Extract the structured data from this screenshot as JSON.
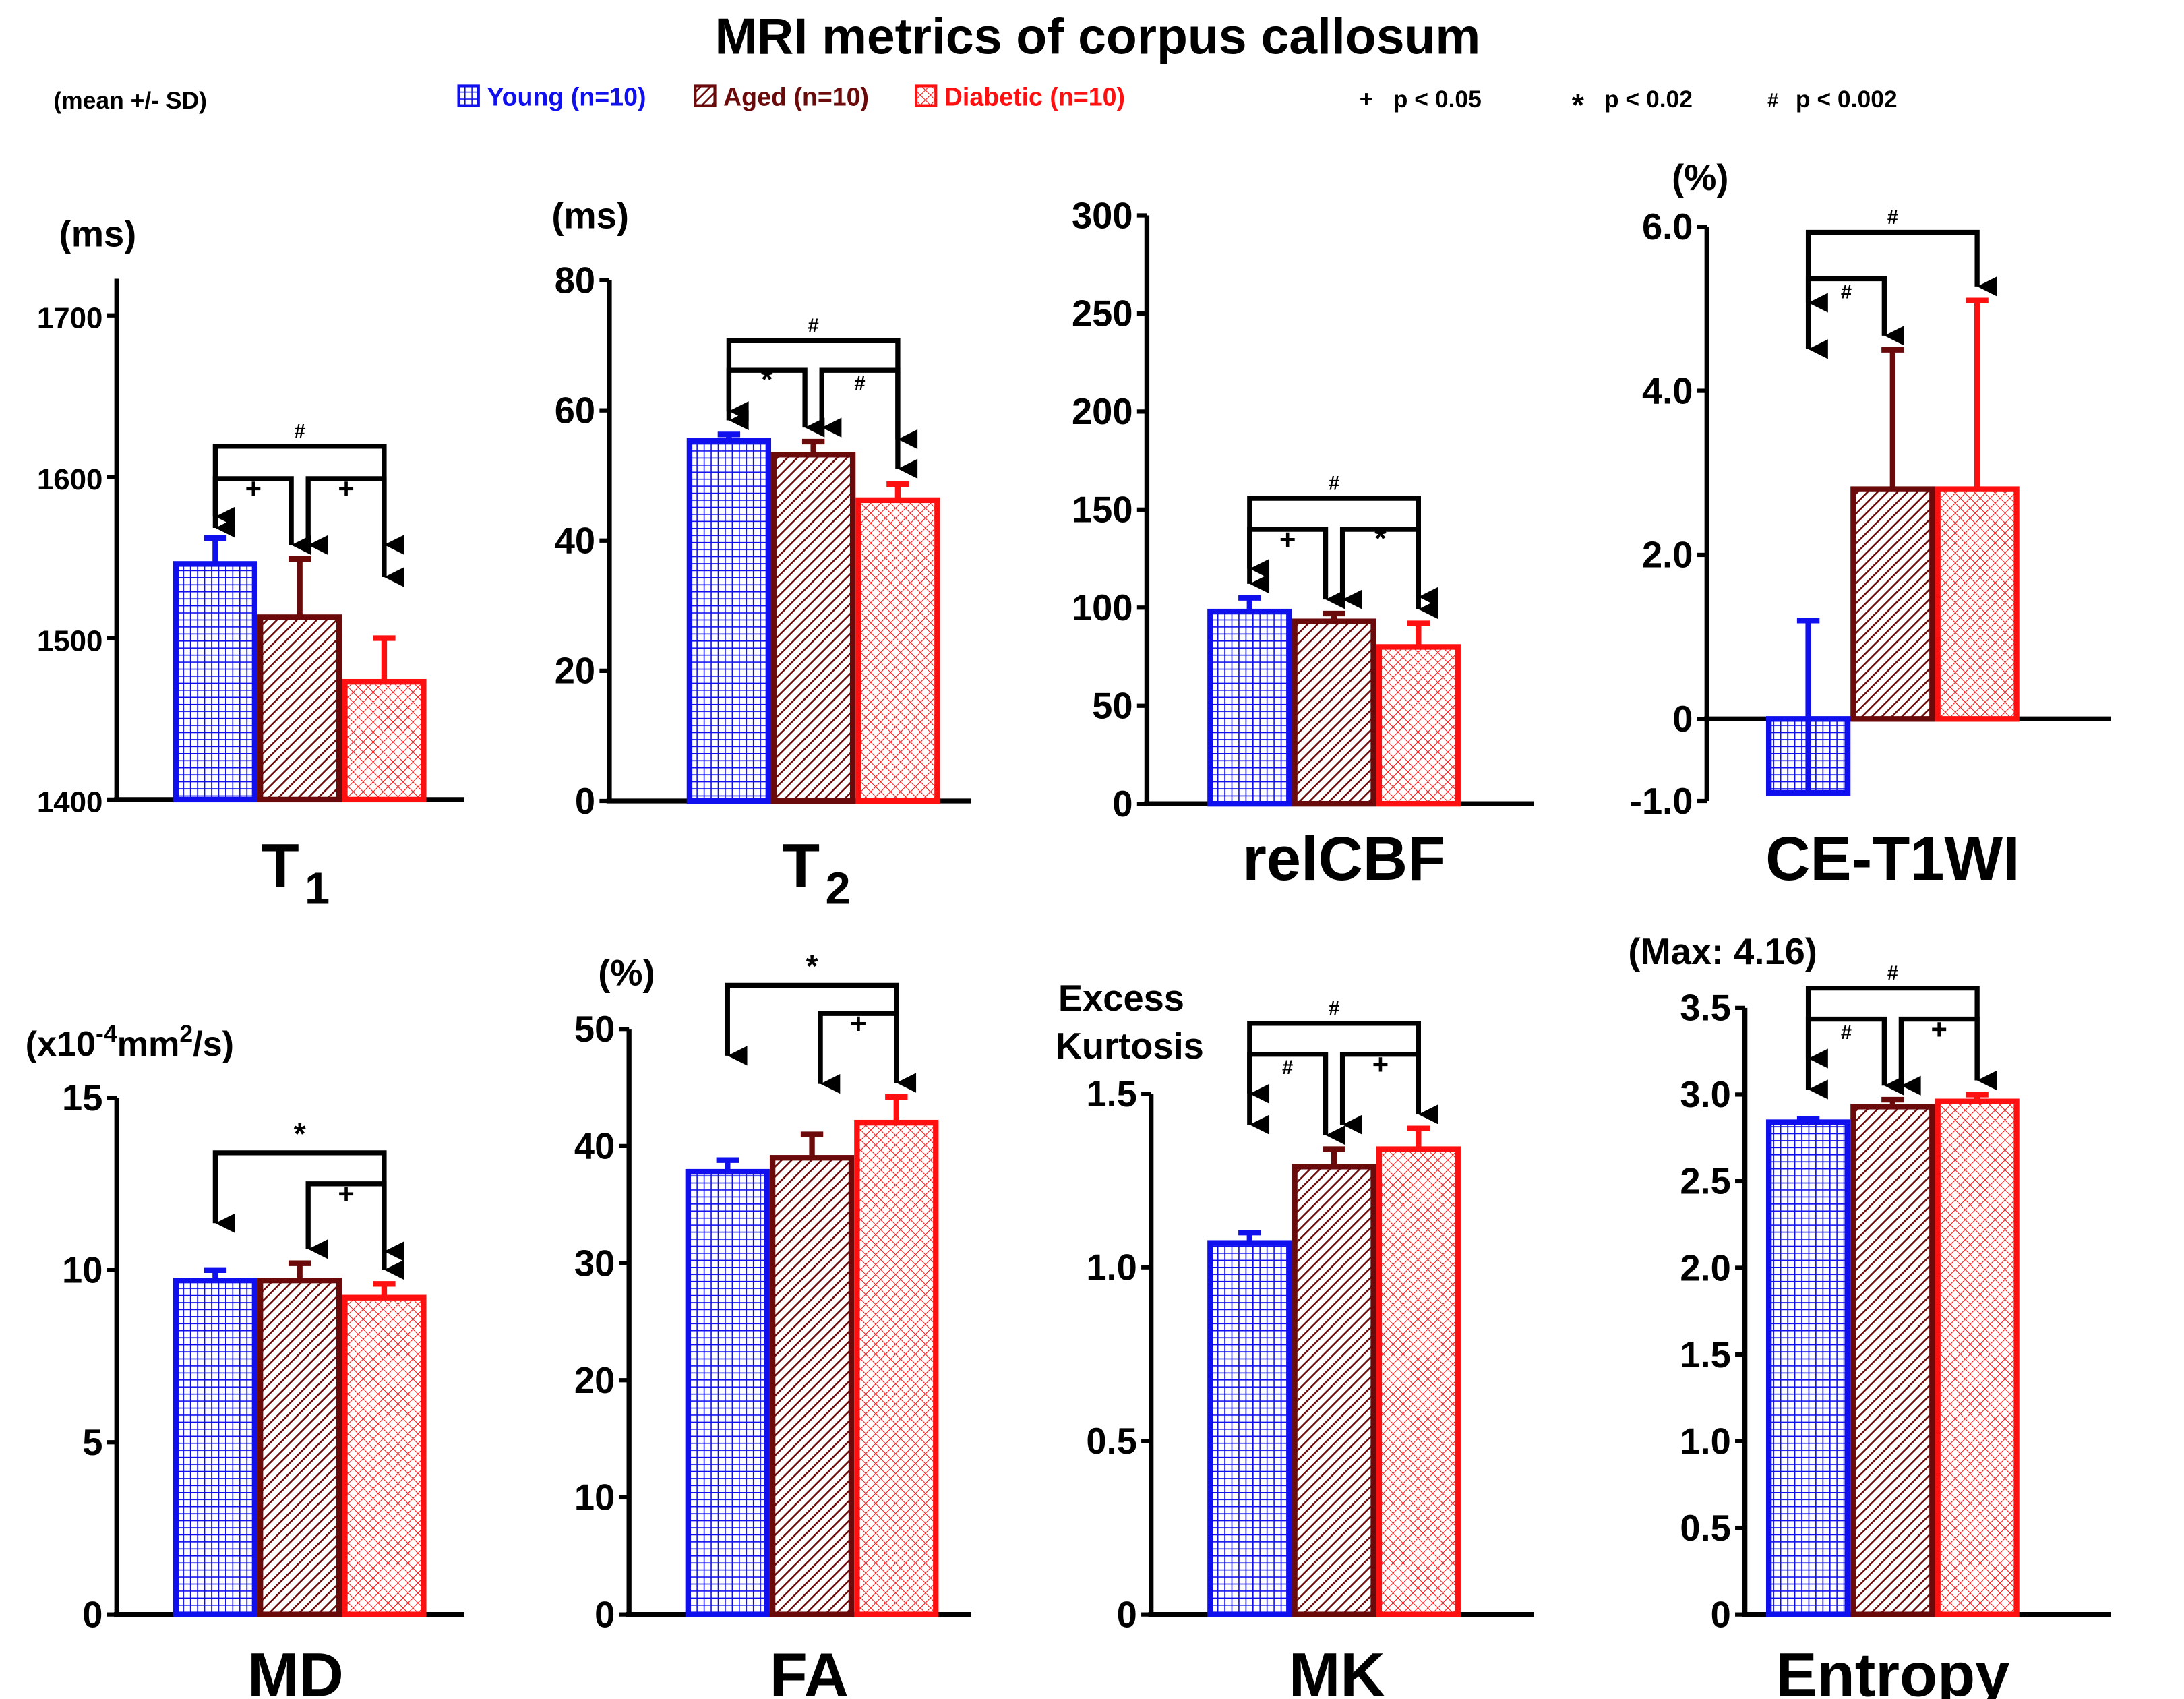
{
  "title": "MRI metrics of corpus callosum",
  "note": "(mean +/- SD)",
  "legend": [
    {
      "label": "Young (n=10)",
      "color": "#1010ee",
      "pattern": "grid"
    },
    {
      "label": "Aged (n=10)",
      "color": "#6b0a0a",
      "pattern": "diagonal"
    },
    {
      "label": "Diabetic (n=10)",
      "color": "#ff1010",
      "pattern": "crosshatch"
    }
  ],
  "significance_key": [
    {
      "symbol": "+",
      "label": "p < 0.05"
    },
    {
      "symbol": "*",
      "label": "p < 0.02"
    },
    {
      "symbol": "#",
      "label": "p < 0.002"
    }
  ],
  "chart_data": [
    {
      "type": "bar",
      "title": "T",
      "title_sub": "1",
      "unit": "(ms)",
      "ylim": [
        1400,
        1700
      ],
      "yticks": [
        "1400",
        "1500",
        "1600",
        "1700"
      ],
      "ytick_values": [
        1400,
        1500,
        1600,
        1700
      ],
      "categories": [
        "Young (n=10)",
        "Aged (n=10)",
        "Diabetic (n=10)"
      ],
      "values": [
        1546,
        1513,
        1473
      ],
      "sd": [
        16,
        36,
        27
      ],
      "significance": [
        {
          "groups": [
            0,
            2
          ],
          "symbol": "#"
        },
        {
          "groups": [
            0,
            1
          ],
          "symbol": "+"
        },
        {
          "groups": [
            1,
            2
          ],
          "symbol": "+"
        }
      ]
    },
    {
      "type": "bar",
      "title": "T",
      "title_sub": "2",
      "unit": "(ms)",
      "ylim": [
        0,
        80
      ],
      "yticks": [
        "0",
        "20",
        "40",
        "60",
        "80"
      ],
      "ytick_values": [
        0,
        20,
        40,
        60,
        80
      ],
      "categories": [
        "Young (n=10)",
        "Aged (n=10)",
        "Diabetic (n=10)"
      ],
      "values": [
        55.3,
        53.2,
        46.2
      ],
      "sd": [
        1.0,
        2.0,
        2.5
      ],
      "significance": [
        {
          "groups": [
            0,
            2
          ],
          "symbol": "#"
        },
        {
          "groups": [
            0,
            1
          ],
          "symbol": "*"
        },
        {
          "groups": [
            1,
            2
          ],
          "symbol": "#"
        }
      ]
    },
    {
      "type": "bar",
      "title": "relCBF",
      "title_sub": "",
      "unit": "",
      "ylim": [
        0,
        300
      ],
      "yticks": [
        "0",
        "50",
        "100",
        "150",
        "200",
        "250",
        "300"
      ],
      "ytick_values": [
        0,
        50,
        100,
        150,
        200,
        250,
        300
      ],
      "categories": [
        "Young (n=10)",
        "Aged (n=10)",
        "Diabetic (n=10)"
      ],
      "values": [
        98,
        93,
        80
      ],
      "sd": [
        7,
        4,
        12
      ],
      "significance": [
        {
          "groups": [
            0,
            2
          ],
          "symbol": "#"
        },
        {
          "groups": [
            0,
            1
          ],
          "symbol": "+"
        },
        {
          "groups": [
            1,
            2
          ],
          "symbol": "*"
        }
      ]
    },
    {
      "type": "bar",
      "title": "CE-T1WI",
      "title_sub": "",
      "unit": "(%)",
      "ylim": [
        -1,
        6
      ],
      "yticks": [
        "-1.0",
        "0",
        "2.0",
        "4.0",
        "6.0"
      ],
      "ytick_values": [
        -1,
        0,
        2,
        4,
        6
      ],
      "categories": [
        "Young (n=10)",
        "Aged (n=10)",
        "Diabetic (n=10)"
      ],
      "values": [
        -0.9,
        2.8,
        2.8
      ],
      "sd": [
        2.1,
        1.7,
        2.3
      ],
      "significance": [
        {
          "groups": [
            0,
            2
          ],
          "symbol": "#"
        },
        {
          "groups": [
            0,
            1
          ],
          "symbol": "#"
        }
      ]
    },
    {
      "type": "bar",
      "title": "MD",
      "title_sub": "",
      "unit": "(x10",
      "unit_sup": "-4",
      "unit_rest": "mm",
      "unit_sup2": "2",
      "unit_end": "/s)",
      "ylim": [
        0,
        15
      ],
      "yticks": [
        "0",
        "5",
        "10",
        "15"
      ],
      "ytick_values": [
        0,
        5,
        10,
        15
      ],
      "categories": [
        "Young (n=10)",
        "Aged (n=10)",
        "Diabetic (n=10)"
      ],
      "values": [
        9.7,
        9.7,
        9.2
      ],
      "sd": [
        0.3,
        0.5,
        0.4
      ],
      "significance": [
        {
          "groups": [
            0,
            2
          ],
          "symbol": "*"
        },
        {
          "groups": [
            1,
            2
          ],
          "symbol": "+"
        }
      ]
    },
    {
      "type": "bar",
      "title": "FA",
      "title_sub": "",
      "unit": "(%)",
      "ylim": [
        0,
        50
      ],
      "yticks": [
        "0",
        "10",
        "20",
        "30",
        "40",
        "50"
      ],
      "ytick_values": [
        0,
        10,
        20,
        30,
        40,
        50
      ],
      "categories": [
        "Young (n=10)",
        "Aged (n=10)",
        "Diabetic (n=10)"
      ],
      "values": [
        37.8,
        39.0,
        42.0
      ],
      "sd": [
        1.0,
        2.0,
        2.2
      ],
      "significance": [
        {
          "groups": [
            0,
            2
          ],
          "symbol": "*"
        },
        {
          "groups": [
            1,
            2
          ],
          "symbol": "+"
        }
      ]
    },
    {
      "type": "bar",
      "title": "MK",
      "title_sub": "",
      "unit": "Excess",
      "unit2": "Kurtosis",
      "ylim": [
        0,
        1.5
      ],
      "yticks": [
        "0",
        "0.5",
        "1.0",
        "1.5"
      ],
      "ytick_values": [
        0,
        0.5,
        1.0,
        1.5
      ],
      "categories": [
        "Young (n=10)",
        "Aged (n=10)",
        "Diabetic (n=10)"
      ],
      "values": [
        1.07,
        1.29,
        1.34
      ],
      "sd": [
        0.03,
        0.05,
        0.06
      ],
      "significance": [
        {
          "groups": [
            0,
            2
          ],
          "symbol": "#"
        },
        {
          "groups": [
            0,
            1
          ],
          "symbol": "#"
        },
        {
          "groups": [
            1,
            2
          ],
          "symbol": "+"
        }
      ]
    },
    {
      "type": "bar",
      "title": "Entropy",
      "title_sub": "",
      "unit": "(Max: 4.16)",
      "ylim": [
        0,
        3.5
      ],
      "yticks": [
        "0",
        "0.5",
        "1.0",
        "1.5",
        "2.0",
        "2.5",
        "3.0",
        "3.5"
      ],
      "ytick_values": [
        0,
        0.5,
        1.0,
        1.5,
        2.0,
        2.5,
        3.0,
        3.5
      ],
      "categories": [
        "Young (n=10)",
        "Aged (n=10)",
        "Diabetic (n=10)"
      ],
      "values": [
        2.84,
        2.93,
        2.96
      ],
      "sd": [
        0.02,
        0.04,
        0.04
      ],
      "significance": [
        {
          "groups": [
            0,
            2
          ],
          "symbol": "#"
        },
        {
          "groups": [
            0,
            1
          ],
          "symbol": "#"
        },
        {
          "groups": [
            1,
            2
          ],
          "symbol": "+"
        }
      ]
    }
  ]
}
